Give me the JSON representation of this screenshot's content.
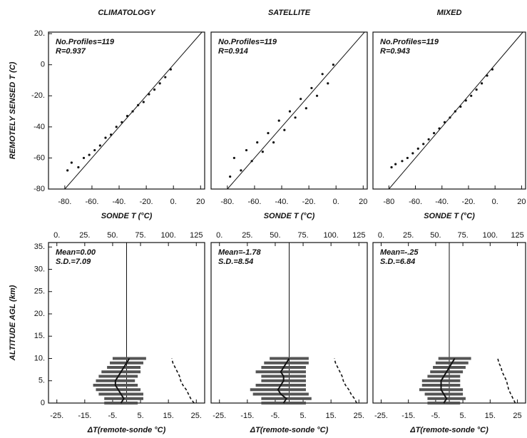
{
  "chart_data": [
    {
      "type": "scatter",
      "title": "CLIMATOLOGY",
      "xlabel": "SONDE T (°C)",
      "ylabel": "REMOTELY SENSED T (C)",
      "annotations": [
        "No.Profiles=119",
        "R=0.937"
      ],
      "xlim": [
        -92,
        23
      ],
      "ylim": [
        -80,
        21
      ],
      "xticks": [
        {
          "value": -80,
          "label": "-80."
        },
        {
          "value": -60,
          "label": "-60."
        },
        {
          "value": -40,
          "label": "-40."
        },
        {
          "value": -20,
          "label": "-20."
        },
        {
          "value": 0,
          "label": "0."
        },
        20
      ],
      "yticks": [
        {
          "value": 20,
          "label": "20."
        },
        0,
        {
          "value": -20,
          "label": "-20."
        },
        -40,
        -60,
        -80
      ],
      "x": [
        -78,
        -75,
        -70,
        -66,
        -62,
        -58,
        -54,
        -50,
        -46,
        -42,
        -38,
        -34,
        -30,
        -26,
        -22,
        -18,
        -14,
        -10,
        -6,
        -2
      ],
      "y": [
        -68,
        -63,
        -66,
        -60,
        -58,
        -55,
        -52,
        -47,
        -45,
        -40,
        -37,
        -33,
        -30,
        -26,
        -24,
        -19,
        -16,
        -12,
        -8,
        -3
      ]
    },
    {
      "type": "scatter",
      "title": "SATELLITE",
      "xlabel": "SONDE T (°C)",
      "annotations": [
        "No.Profiles=119",
        "R=0.914"
      ],
      "xlim": [
        -92,
        23
      ],
      "ylim": [
        -80,
        21
      ],
      "xticks": [
        {
          "value": -80,
          "label": "-80."
        },
        {
          "value": -60,
          "label": "-60."
        },
        {
          "value": -40,
          "label": "-40."
        },
        {
          "value": -20,
          "label": "-20."
        },
        {
          "value": 0,
          "label": "0."
        },
        20
      ],
      "x": [
        -78,
        -75,
        -70,
        -66,
        -62,
        -58,
        -54,
        -50,
        -46,
        -42,
        -38,
        -34,
        -30,
        -26,
        -22,
        -18,
        -14,
        -10,
        -6,
        -2
      ],
      "y": [
        -72,
        -60,
        -68,
        -55,
        -62,
        -50,
        -56,
        -44,
        -50,
        -36,
        -42,
        -30,
        -34,
        -22,
        -28,
        -15,
        -20,
        -6,
        -12,
        0
      ]
    },
    {
      "type": "scatter",
      "title": "MIXED",
      "xlabel": "SONDE T (°C)",
      "annotations": [
        "No.Profiles=119",
        "R=0.943"
      ],
      "xlim": [
        -92,
        23
      ],
      "ylim": [
        -80,
        21
      ],
      "xticks": [
        -80,
        {
          "value": -60,
          "label": "-60."
        },
        {
          "value": -40,
          "label": "-40."
        },
        {
          "value": -20,
          "label": "-20."
        },
        {
          "value": 0,
          "label": "0."
        },
        20
      ],
      "x": [
        -78,
        -75,
        -70,
        -66,
        -62,
        -58,
        -54,
        -50,
        -46,
        -42,
        -38,
        -34,
        -30,
        -26,
        -22,
        -18,
        -14,
        -10,
        -6,
        -2
      ],
      "y": [
        -66,
        -64,
        -62,
        -60,
        -57,
        -54,
        -51,
        -48,
        -44,
        -41,
        -37,
        -34,
        -30,
        -27,
        -23,
        -20,
        -16,
        -12,
        -7,
        -3
      ]
    },
    {
      "type": "profile",
      "xlabel": "ΔT(remote-sonde °C)",
      "ylabel": "ALTITUDE AGL (km)",
      "annotations": [
        "Mean=0.00",
        "S.D.=7.09"
      ],
      "xlim": [
        -28,
        28
      ],
      "x2lim": [
        -7.5,
        132.5
      ],
      "ylim": [
        0,
        36
      ],
      "vline": 0,
      "xticks": [
        {
          "value": -25,
          "label": "-25."
        },
        {
          "value": -15,
          "label": "-15."
        },
        {
          "value": -5,
          "label": "-5."
        },
        {
          "value": 5,
          "label": "5."
        },
        {
          "value": 15,
          "label": "15."
        },
        {
          "value": 25,
          "label": "25."
        }
      ],
      "x2ticks": [
        {
          "value": 0,
          "label": "0."
        },
        {
          "value": 25,
          "label": "25."
        },
        {
          "value": 50,
          "label": "50."
        },
        {
          "value": 75,
          "label": "75."
        },
        {
          "value": 100,
          "label": "100."
        },
        125
      ],
      "yticks": [
        {
          "value": 35,
          "label": "35."
        },
        {
          "value": 30,
          "label": "30."
        },
        {
          "value": 25,
          "label": "25."
        },
        {
          "value": 20,
          "label": "20."
        },
        {
          "value": 15,
          "label": "15."
        },
        {
          "value": 10,
          "label": "10."
        },
        {
          "value": 5,
          "label": "5."
        },
        0
      ],
      "altitude": [
        0,
        1,
        2,
        3,
        4,
        5,
        6,
        7,
        8,
        9,
        10
      ],
      "mean": [
        -2,
        -1,
        -2,
        -3,
        -4,
        -4,
        -3,
        -2,
        -1,
        0,
        1
      ],
      "sd": [
        6,
        7,
        8,
        8,
        8,
        7,
        7,
        7,
        6,
        6,
        6
      ],
      "count": [
        123,
        120,
        118,
        116,
        113,
        111,
        110,
        108,
        106,
        104,
        103
      ]
    },
    {
      "type": "profile",
      "xlabel": "ΔT(remote-sonde °C)",
      "annotations": [
        "Mean=-1.78",
        "S.D.=8.54"
      ],
      "xlim": [
        -28,
        28
      ],
      "x2lim": [
        -7.5,
        132.5
      ],
      "ylim": [
        0,
        36
      ],
      "vline": 0,
      "xticks": [
        {
          "value": -25,
          "label": "-25."
        },
        {
          "value": -15,
          "label": "-15."
        },
        {
          "value": -5,
          "label": "-5."
        },
        {
          "value": 5,
          "label": "5."
        },
        {
          "value": 15,
          "label": "15."
        },
        {
          "value": 25,
          "label": "25."
        }
      ],
      "x2ticks": [
        {
          "value": 0,
          "label": "0."
        },
        {
          "value": 25,
          "label": "25."
        },
        {
          "value": 50,
          "label": "50."
        },
        {
          "value": 75,
          "label": "75."
        },
        {
          "value": 100,
          "label": "100."
        },
        125
      ],
      "altitude": [
        0,
        1,
        2,
        3,
        4,
        5,
        6,
        7,
        8,
        9,
        10
      ],
      "mean": [
        -2,
        -1,
        -3,
        -4,
        -3,
        -2,
        -2,
        -3,
        -2,
        -1,
        0
      ],
      "sd": [
        8,
        9,
        10,
        10,
        9,
        8,
        8,
        9,
        8,
        8,
        7
      ],
      "count": [
        123,
        121,
        118,
        116,
        113,
        111,
        110,
        108,
        106,
        104,
        103
      ]
    },
    {
      "type": "profile",
      "xlabel": "ΔT(remote-sonde °C)",
      "annotations": [
        "Mean=-.25",
        "S.D.=6.84"
      ],
      "xlim": [
        -28,
        28
      ],
      "x2lim": [
        -7.5,
        132.5
      ],
      "ylim": [
        0,
        36
      ],
      "vline": 0,
      "xticks": [
        {
          "value": -25,
          "label": "-25."
        },
        {
          "value": -15,
          "label": "-15."
        },
        {
          "value": -5,
          "label": "-5."
        },
        {
          "value": 5,
          "label": "5."
        },
        {
          "value": 15,
          "label": "15."
        },
        25
      ],
      "x2ticks": [
        {
          "value": 0,
          "label": "0."
        },
        {
          "value": 25,
          "label": "25."
        },
        {
          "value": 50,
          "label": "50."
        },
        {
          "value": 75,
          "label": "75."
        },
        {
          "value": 100,
          "label": "100."
        },
        125
      ],
      "altitude": [
        0,
        1,
        2,
        3,
        4,
        5,
        6,
        7,
        8,
        9,
        10
      ],
      "mean": [
        -2,
        -1,
        -2,
        -3,
        -3,
        -3,
        -2,
        -1,
        0,
        1,
        2
      ],
      "sd": [
        6,
        7,
        7,
        8,
        7,
        7,
        6,
        6,
        6,
        6,
        6
      ],
      "count": [
        123,
        121,
        119,
        117,
        116,
        115,
        113,
        111,
        110,
        108,
        107
      ]
    }
  ]
}
